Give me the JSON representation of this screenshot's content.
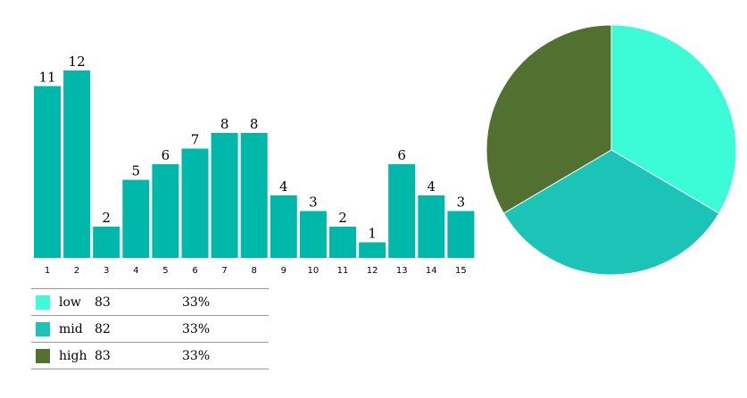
{
  "chart_data": [
    {
      "type": "bar",
      "categories": [
        "1",
        "2",
        "3",
        "4",
        "5",
        "6",
        "7",
        "8",
        "9",
        "10",
        "11",
        "12",
        "13",
        "14",
        "15"
      ],
      "values": [
        11,
        12,
        2,
        5,
        6,
        7,
        8,
        8,
        4,
        3,
        2,
        1,
        6,
        4,
        3
      ],
      "ylim": [
        0,
        12
      ],
      "grid": false,
      "colors": {
        "bar": "#00b8a9"
      }
    },
    {
      "type": "pie",
      "slices": [
        {
          "label": "low",
          "value": 83,
          "percent": "33%",
          "color": "#3cfcd7"
        },
        {
          "label": "mid",
          "value": 82,
          "percent": "33%",
          "color": "#1cc4b8"
        },
        {
          "label": "high",
          "value": 83,
          "percent": "33%",
          "color": "#527130"
        }
      ]
    }
  ],
  "legend": {
    "rows": [
      {
        "label": "low",
        "count": "83",
        "percent": "33%",
        "color": "#3cfcd7"
      },
      {
        "label": "mid",
        "count": "82",
        "percent": "33%",
        "color": "#1cc4b8"
      },
      {
        "label": "high",
        "count": "83",
        "percent": "33%",
        "color": "#527130"
      }
    ]
  }
}
